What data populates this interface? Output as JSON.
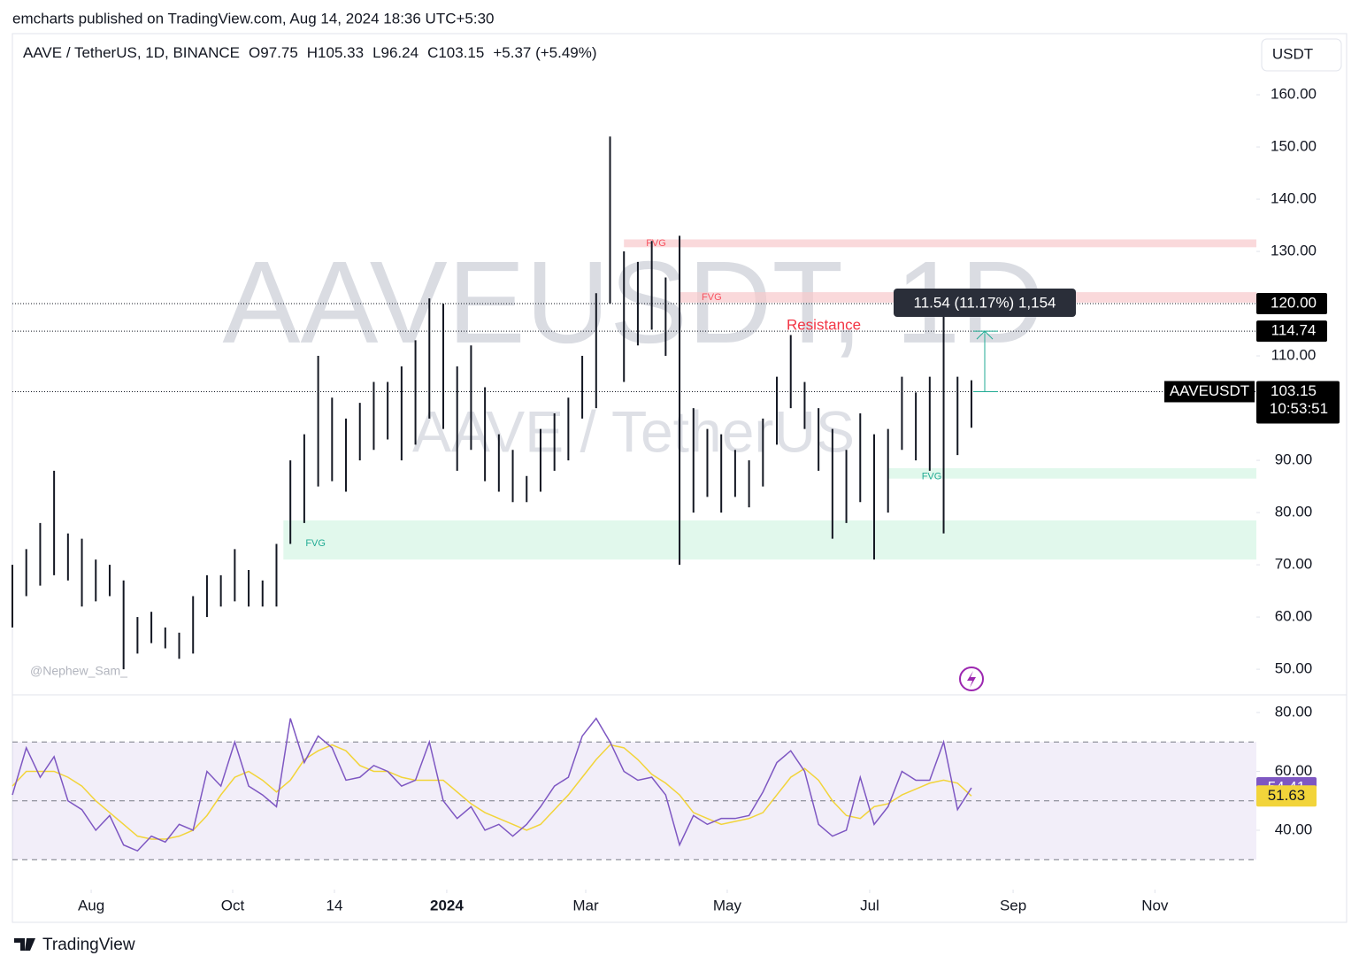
{
  "header": {
    "publisher": "emcharts published on TradingView.com, Aug 14, 2024 18:36 UTC+5:30",
    "brand": "TradingView",
    "author": "@Nephew_Sam_"
  },
  "chart_data": {
    "type": "ohlc",
    "symbol": "AAVE / TetherUS, 1D, BINANCE",
    "open": "O97.75",
    "high": "H105.33",
    "low": "L96.24",
    "close": "C103.15",
    "change": "+5.37 (+5.49%)",
    "watermark": "AAVEUSDT, 1D",
    "watermark_sub": "AAVE / TetherUS",
    "currency": "USDT",
    "ticker": "AAVEUSDT",
    "countdown": "10:53:51",
    "color": "#131722",
    "xlim": [
      0,
      89.5
    ],
    "xticks": [
      {
        "value": 5.67,
        "label": "Aug"
      },
      {
        "value": 15.85,
        "label": "Oct"
      },
      {
        "value": 23.17,
        "label": "14"
      },
      {
        "value": 31.25,
        "label": "2024"
      },
      {
        "value": 41.25,
        "label": "Mar"
      },
      {
        "value": 51.43,
        "label": "May"
      },
      {
        "value": 61.68,
        "label": "Jul"
      },
      {
        "value": 72.0,
        "label": "Sep"
      },
      {
        "value": 82.2,
        "label": "Nov"
      }
    ],
    "ylim": [
      45.1,
      171.7
    ],
    "yticks": [
      {
        "value": 50,
        "label": "50.00"
      },
      {
        "value": 60,
        "label": "60.00"
      },
      {
        "value": 70,
        "label": "70.00"
      },
      {
        "value": 80,
        "label": "80.00"
      },
      {
        "value": 90,
        "label": "90.00"
      },
      {
        "value": 110,
        "label": "110.00"
      },
      {
        "value": 130,
        "label": "130.00"
      },
      {
        "value": 140,
        "label": "140.00"
      },
      {
        "value": 150,
        "label": "150.00"
      },
      {
        "value": 160,
        "label": "160.00"
      }
    ],
    "highs": [
      70,
      73,
      78,
      88,
      76,
      75,
      71,
      70,
      67,
      60,
      61,
      58,
      57,
      64,
      68,
      68,
      73,
      69,
      67,
      74,
      90,
      95,
      110,
      102,
      98,
      101,
      105,
      105,
      108,
      113,
      121,
      120,
      108,
      112,
      104,
      95,
      92,
      87,
      96,
      99,
      102,
      110,
      122,
      152,
      130,
      128,
      132,
      125,
      133,
      100,
      96,
      95,
      92,
      90,
      98,
      106,
      114,
      105,
      100,
      96,
      92,
      99,
      95,
      96,
      106,
      103,
      106,
      118,
      106,
      105.33
    ],
    "lows": [
      58,
      64,
      66,
      68,
      67,
      62,
      63,
      64,
      50,
      53,
      55,
      54,
      52,
      53,
      60,
      62,
      63,
      62,
      62,
      62,
      74,
      78,
      85,
      86,
      84,
      90,
      92,
      94,
      90,
      93,
      98,
      96,
      88,
      92,
      86,
      84,
      82,
      82,
      84,
      88,
      90,
      98,
      100,
      120,
      105,
      112,
      115,
      110,
      70,
      80,
      83,
      80,
      83,
      81,
      85,
      93,
      100,
      96,
      88,
      75,
      78,
      82,
      71,
      80,
      92,
      90,
      88,
      76,
      91,
      96.24
    ],
    "levels": [
      {
        "value": 120,
        "label": "120.00"
      },
      {
        "value": 114.74,
        "label": "114.74"
      },
      {
        "value": 103.15,
        "label": "103.15"
      }
    ],
    "measure": "11.54 (11.17%) 1,154",
    "resistance": "Resistance",
    "zones": [
      {
        "label": "FVG",
        "low": 130.8,
        "high": 132.3,
        "from": 44,
        "color": "#f8c9cc"
      },
      {
        "label": "FVG",
        "low": 120.2,
        "high": 122.2,
        "from": 48,
        "color": "#f8c9cc"
      },
      {
        "label": "FVG",
        "low": 86.5,
        "high": 88.5,
        "from": 63,
        "color": "#d4f5e4"
      },
      {
        "label": "FVG",
        "low": 71,
        "high": 78.5,
        "from": 19.5,
        "color": "#d4f5e4"
      }
    ],
    "rsi": {
      "ylim": [
        19.85,
        86
      ],
      "yticks": [
        {
          "value": 40,
          "label": "40.00"
        },
        {
          "value": 60,
          "label": "60.00"
        },
        {
          "value": 80,
          "label": "80.00"
        }
      ],
      "bands": [
        70,
        50,
        30
      ],
      "color": "#7e57c2",
      "ma_color": "#f2d43a",
      "values": [
        52,
        68,
        58,
        65,
        50,
        47,
        40,
        45,
        35,
        33,
        38,
        36,
        42,
        40,
        60,
        55,
        70,
        55,
        52,
        48,
        78,
        63,
        72,
        68,
        57,
        58,
        62,
        60,
        55,
        57,
        70,
        50,
        44,
        48,
        40,
        42,
        38,
        42,
        48,
        55,
        58,
        72,
        78,
        70,
        60,
        57,
        58,
        52,
        35,
        45,
        42,
        44,
        44,
        45,
        53,
        63,
        67,
        60,
        42,
        38,
        40,
        58,
        42,
        48,
        60,
        57,
        57,
        70,
        47,
        54.41
      ],
      "ma": [
        55,
        60,
        60,
        60,
        58,
        55,
        50,
        46,
        42,
        38,
        37,
        37,
        38,
        40,
        45,
        52,
        58,
        60,
        57,
        53,
        57,
        64,
        67,
        69,
        67,
        62,
        60,
        60,
        58,
        57,
        57,
        57,
        53,
        49,
        46,
        44,
        42,
        40,
        42,
        47,
        52,
        58,
        64,
        69,
        68,
        64,
        59,
        56,
        52,
        46,
        44,
        42,
        43,
        44,
        46,
        52,
        58,
        61,
        57,
        50,
        45,
        44,
        48,
        49,
        52,
        54,
        56,
        57,
        56,
        51.63
      ]
    }
  }
}
